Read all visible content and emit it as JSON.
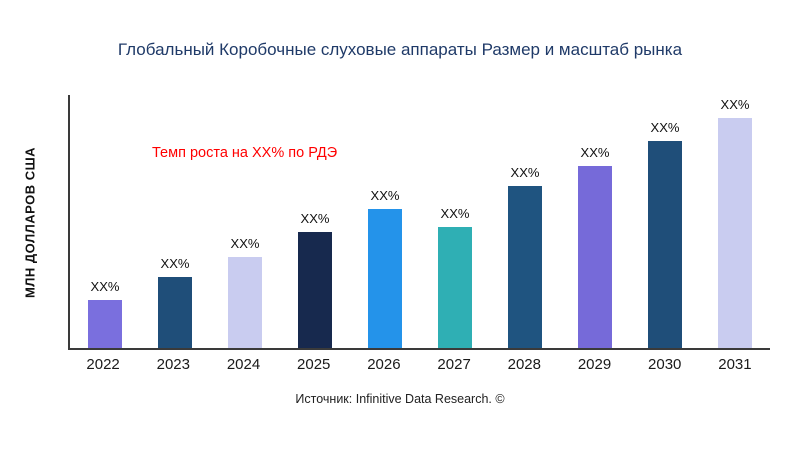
{
  "chart_data": {
    "type": "bar",
    "title": "Глобальный Коробочные слуховые аппараты Размер и масштаб рынка",
    "ylabel": "МЛН ДОЛЛАРОВ США",
    "xlabel": "",
    "annotation": "Темп роста на XX% по РДЭ",
    "annotation_color": "#ff0000",
    "source": "Источник: Infinitive Data Research. ©",
    "categories": [
      "2022",
      "2023",
      "2024",
      "2025",
      "2026",
      "2027",
      "2028",
      "2029",
      "2030",
      "2031"
    ],
    "values": [
      19,
      28,
      36,
      46,
      55,
      48,
      64,
      72,
      82,
      91
    ],
    "bar_labels": [
      "XX%",
      "XX%",
      "XX%",
      "XX%",
      "XX%",
      "XX%",
      "XX%",
      "XX%",
      "XX%",
      "XX%"
    ],
    "colors": [
      "#7a6fde",
      "#1f4e79",
      "#c9ccf0",
      "#17294e",
      "#2493ea",
      "#2fafb4",
      "#1f5480",
      "#766ad9",
      "#1f4e79",
      "#c9ccf0"
    ],
    "ylim": [
      0,
      100
    ],
    "grid": false,
    "legend": "none",
    "title_color": "#1f3a68"
  }
}
